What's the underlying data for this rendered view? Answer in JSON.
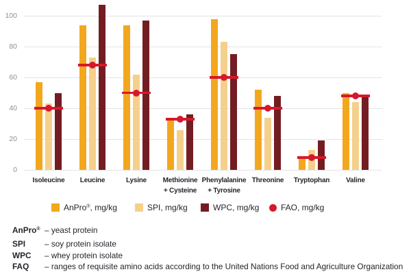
{
  "chart_data": {
    "type": "bar",
    "categories": [
      "Isoleucine",
      "Leucine",
      "Lysine",
      "Methionine + Cysteine",
      "Phenylalanine + Tyrosine",
      "Threonine",
      "Tryptophan",
      "Valine"
    ],
    "series": [
      {
        "name": "AnPro®, mg/kg",
        "color": "#F3A71F",
        "values": [
          57,
          94,
          94,
          33,
          98,
          52,
          9,
          50
        ]
      },
      {
        "name": "SPI, mg/kg",
        "color": "#F5D08C",
        "values": [
          43,
          73,
          62,
          26,
          83,
          34,
          13,
          44
        ]
      },
      {
        "name": "WPC, mg/kg",
        "color": "#731D23",
        "values": [
          50,
          107,
          97,
          36,
          75,
          48,
          19,
          48
        ]
      }
    ],
    "fao_markers": {
      "name": "FAO, mg/kg",
      "color": "#D6182C",
      "values": [
        40,
        68,
        50,
        33,
        60,
        40,
        8,
        48
      ]
    },
    "ylim": [
      0,
      110
    ],
    "yticks": [
      0,
      20,
      40,
      60,
      80,
      100
    ],
    "grid": true,
    "legend_position": "bottom"
  },
  "footnotes": [
    {
      "term": "AnPro®",
      "definition": "– yeast protein"
    },
    {
      "term": "SPI",
      "definition": "– soy protein isolate"
    },
    {
      "term": "WPC",
      "definition": "– whey protein isolate"
    },
    {
      "term": "FAQ",
      "definition": "– ranges of requisite amino acids according to the United Nations Food and Agriculture Organization"
    }
  ]
}
